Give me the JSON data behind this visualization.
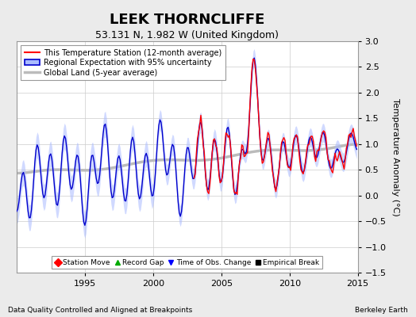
{
  "title": "LEEK THORNCLIFFE",
  "subtitle": "53.131 N, 1.982 W (United Kingdom)",
  "ylabel": "Temperature Anomaly (°C)",
  "ylim": [
    -1.5,
    3.0
  ],
  "xlim": [
    1990.0,
    2015.0
  ],
  "xticks": [
    1995,
    2000,
    2005,
    2010,
    2015
  ],
  "yticks": [
    -1.5,
    -1.0,
    -0.5,
    0.0,
    0.5,
    1.0,
    1.5,
    2.0,
    2.5,
    3.0
  ],
  "footer_left": "Data Quality Controlled and Aligned at Breakpoints",
  "footer_right": "Berkeley Earth",
  "legend_items": [
    {
      "label": "This Temperature Station (12-month average)",
      "color": "#FF0000",
      "lw": 1.5
    },
    {
      "label": "Regional Expectation with 95% uncertainty",
      "color": "#0000CC",
      "band_color": "#AABBFF",
      "lw": 1.5
    },
    {
      "label": "Global Land (5-year average)",
      "color": "#BBBBBB",
      "lw": 3.0
    }
  ],
  "marker_legend": [
    {
      "label": "Station Move",
      "marker": "D",
      "color": "#FF0000"
    },
    {
      "label": "Record Gap",
      "marker": "^",
      "color": "#00AA00"
    },
    {
      "label": "Time of Obs. Change",
      "marker": "v",
      "color": "#0000FF"
    },
    {
      "label": "Empirical Break",
      "marker": "s",
      "color": "#000000"
    }
  ],
  "background_color": "#EBEBEB",
  "plot_background": "#FFFFFF",
  "grid_color": "#CCCCCC",
  "title_fontsize": 13,
  "subtitle_fontsize": 9,
  "tick_fontsize": 8,
  "ylabel_fontsize": 8
}
